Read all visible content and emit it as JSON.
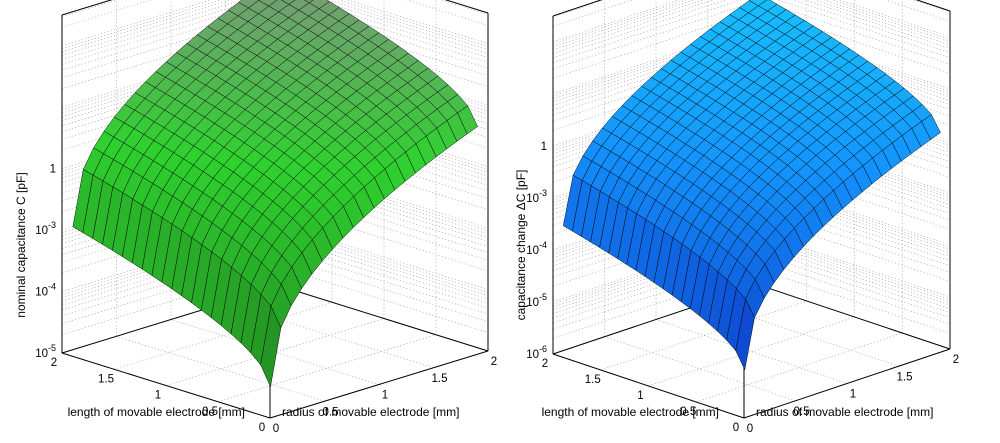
{
  "chart_data": [
    {
      "type": "surface",
      "xlabel": "radius of movable electrode [mm]",
      "ylabel": "length of movable electrode [mm]",
      "zlabel": "nominal capacitance C  [pF]",
      "x_ticks": [
        "0",
        "0.5",
        "1",
        "1.5",
        "2"
      ],
      "y_ticks": [
        "0",
        "0.5",
        "1",
        "1.5",
        "2"
      ],
      "z_ticks": [
        {
          "base": "10",
          "exp": "-5"
        },
        {
          "base": "10",
          "exp": "-4"
        },
        {
          "base": "10",
          "exp": "-3"
        },
        {
          "base": "1",
          "exp": ""
        }
      ],
      "xlim": [
        0,
        2
      ],
      "ylim": [
        0,
        2
      ],
      "zlim_log10": [
        -5,
        0.5
      ],
      "zscale": "log",
      "grid": true,
      "colormap": {
        "low": "#1f7a1f",
        "mid": "#2fd12f",
        "high": "#8c8c8c"
      },
      "surface": {
        "x": [
          0.1,
          2.0
        ],
        "y": [
          0.1,
          2.0
        ],
        "steps": 20,
        "corners_log10": {
          "x0y0": -4.6,
          "x1y0": -1.4,
          "x0y1": -3.0,
          "x1y1": 0.1
        }
      }
    },
    {
      "type": "surface",
      "xlabel": "radius of movable electrode [mm]",
      "ylabel": "length of movable electrode [mm]",
      "zlabel": "capacitance change ΔC [pF]",
      "x_ticks": [
        "0",
        "0.5",
        "1",
        "1.5",
        "2"
      ],
      "y_ticks": [
        "0",
        "0.5",
        "1",
        "1.5",
        "2"
      ],
      "z_ticks": [
        {
          "base": "10",
          "exp": "-6"
        },
        {
          "base": "10",
          "exp": "-5"
        },
        {
          "base": "10",
          "exp": "-4"
        },
        {
          "base": "10",
          "exp": "-3"
        },
        {
          "base": "1",
          "exp": ""
        }
      ],
      "xlim": [
        0,
        2
      ],
      "ylim": [
        0,
        2
      ],
      "zlim_log10": [
        -6,
        0.5
      ],
      "zscale": "log",
      "grid": true,
      "colormap": {
        "low": "#0a1fb8",
        "mid": "#1496ff",
        "high": "#19d4ff"
      },
      "surface": {
        "x": [
          0.1,
          2.0
        ],
        "y": [
          0.1,
          2.0
        ],
        "steps": 20,
        "corners_log10": {
          "x0y0": -5.2,
          "x1y0": -1.9,
          "x0y1": -3.6,
          "x1y1": -0.4
        }
      }
    }
  ]
}
